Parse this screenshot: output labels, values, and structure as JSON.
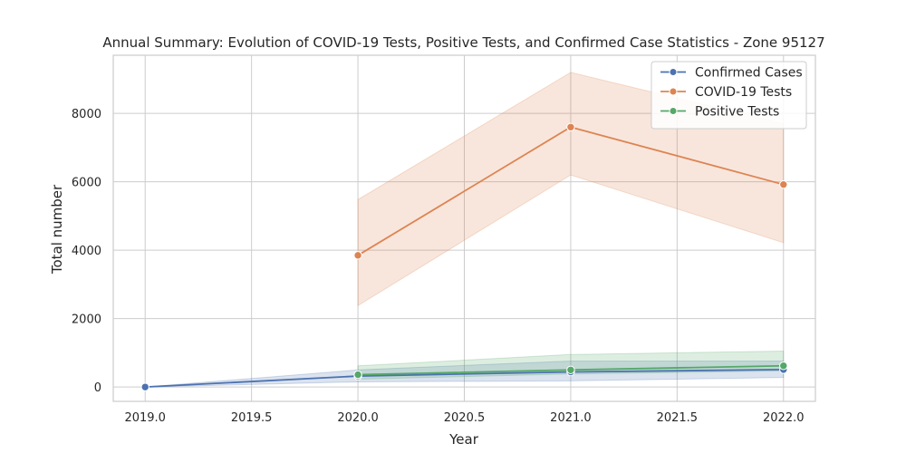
{
  "chart_data": {
    "type": "line",
    "title": "Annual Summary: Evolution of COVID-19 Tests, Positive Tests, and Confirmed Case Statistics - Zone 95127",
    "xlabel": "Year",
    "ylabel": "Total number",
    "xlim": [
      2018.85,
      2022.15
    ],
    "ylim": [
      -420,
      9700
    ],
    "x_ticks": [
      2019.0,
      2019.5,
      2020.0,
      2020.5,
      2021.0,
      2021.5,
      2022.0
    ],
    "x_tick_labels": [
      "2019.0",
      "2019.5",
      "2020.0",
      "2020.5",
      "2021.0",
      "2021.5",
      "2022.0"
    ],
    "y_ticks": [
      0,
      2000,
      4000,
      6000,
      8000
    ],
    "y_tick_labels": [
      "0",
      "2000",
      "4000",
      "6000",
      "8000"
    ],
    "grid": true,
    "legend_position": "top-right",
    "series": [
      {
        "name": "Confirmed Cases",
        "color": "#4c72b0",
        "x": [
          2019,
          2020,
          2021,
          2022
        ],
        "y": [
          0,
          320,
          440,
          510
        ],
        "ci_lower": [
          0,
          150,
          180,
          280
        ],
        "ci_upper": [
          0,
          500,
          760,
          760
        ]
      },
      {
        "name": "COVID-19 Tests",
        "color": "#dd8452",
        "x": [
          2020,
          2021,
          2022
        ],
        "y": [
          3850,
          7600,
          5920
        ],
        "ci_lower": [
          2380,
          6200,
          4220
        ],
        "ci_upper": [
          5480,
          9200,
          7700
        ]
      },
      {
        "name": "Positive Tests",
        "color": "#55a868",
        "x": [
          2020,
          2021,
          2022
        ],
        "y": [
          360,
          500,
          620
        ],
        "ci_lower": [
          230,
          380,
          470
        ],
        "ci_upper": [
          620,
          950,
          1050
        ]
      }
    ]
  }
}
